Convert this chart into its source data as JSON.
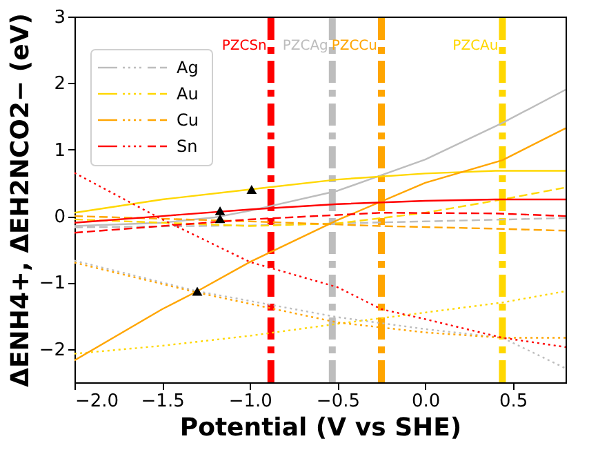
{
  "chart_data": {
    "type": "line",
    "xlabel": "Potential (V vs SHE)",
    "ylabel": "ΔENH4+, ΔEH2NCO2−  (eV)",
    "xlim": [
      -2.0,
      0.8
    ],
    "ylim": [
      -2.5,
      3
    ],
    "xticks": [
      {
        "value": -2,
        "label": "−2.0"
      },
      -1.5,
      {
        "value": -1,
        "label": "−1.0"
      },
      -0.5,
      {
        "value": 0,
        "label": "0.0"
      },
      0.5
    ],
    "yticks": [
      -2,
      -1,
      0,
      1,
      2,
      3
    ],
    "grid": false,
    "legend": "top left",
    "series": [
      {
        "color": "#bdbdbd",
        "line_style": "solid",
        "x": [
          -2.0,
          -1.5,
          -1.2,
          -1.0,
          -0.5,
          0.0,
          0.44,
          0.8
        ],
        "values": [
          -0.15,
          -0.1,
          -0.02,
          0.08,
          0.38,
          0.85,
          1.4,
          1.9
        ]
      },
      {
        "color": "#bdbdbd",
        "line_style": "dotted",
        "x": [
          -2.0,
          -1.3,
          -0.5,
          0.0,
          0.44,
          0.8
        ],
        "values": [
          -0.67,
          -1.13,
          -1.52,
          -1.7,
          -1.83,
          -2.29
        ]
      },
      {
        "name": "Ag",
        "color": "#bdbdbd",
        "line_style": "dashed",
        "x": [
          -2.0,
          -1.0,
          0.0,
          0.8
        ],
        "values": [
          -0.17,
          -0.14,
          -0.08,
          -0.03
        ]
      },
      {
        "color": "#ffd700",
        "line_style": "solid",
        "x": [
          -2.0,
          -1.5,
          -1.0,
          -0.5,
          0.0,
          0.4,
          0.8
        ],
        "values": [
          0.05,
          0.25,
          0.4,
          0.55,
          0.64,
          0.68,
          0.68
        ]
      },
      {
        "color": "#ffd700",
        "line_style": "dotted",
        "x": [
          -2.0,
          -1.5,
          -1.0,
          -0.5,
          0.0,
          0.44,
          0.8
        ],
        "values": [
          -2.07,
          -1.95,
          -1.8,
          -1.62,
          -1.45,
          -1.3,
          -1.13
        ]
      },
      {
        "name": "Au",
        "color": "#ffd700",
        "line_style": "dashed",
        "x": [
          -2.0,
          -1.0,
          -0.5,
          0.0,
          0.44,
          0.8
        ],
        "values": [
          -0.05,
          -0.15,
          -0.11,
          0.05,
          0.25,
          0.43
        ]
      },
      {
        "color": "#ffa500",
        "line_style": "solid",
        "x": [
          -2.0,
          -1.5,
          -1.3,
          -1.0,
          -0.5,
          0.0,
          0.44,
          0.8
        ],
        "values": [
          -2.17,
          -1.4,
          -1.13,
          -0.69,
          -0.06,
          0.5,
          0.84,
          1.32
        ]
      },
      {
        "color": "#ffa500",
        "line_style": "dotted",
        "x": [
          -2.0,
          -1.3,
          -0.5,
          0.0,
          0.44,
          0.8
        ],
        "values": [
          -0.7,
          -1.15,
          -1.6,
          -1.75,
          -1.83,
          -1.83
        ]
      },
      {
        "name": "Cu",
        "color": "#ffa500",
        "line_style": "dashed",
        "x": [
          -2.0,
          -1.0,
          -0.25,
          0.4,
          0.8
        ],
        "values": [
          0.0,
          -0.08,
          -0.15,
          -0.19,
          -0.22
        ]
      },
      {
        "color": "#ff0000",
        "line_style": "solid",
        "x": [
          -2.0,
          -1.5,
          -1.0,
          -0.5,
          0.0,
          0.4,
          0.8
        ],
        "values": [
          -0.1,
          0.0,
          0.1,
          0.18,
          0.23,
          0.25,
          0.25
        ]
      },
      {
        "color": "#ff0000",
        "line_style": "dotted",
        "x": [
          -2.0,
          -1.5,
          -1.0,
          -0.5,
          -0.25,
          0.0,
          0.44,
          0.8
        ],
        "values": [
          0.65,
          -0.05,
          -0.69,
          -1.07,
          -1.4,
          -1.55,
          -1.83,
          -1.97
        ]
      },
      {
        "name": "Sn",
        "color": "#ff0000",
        "line_style": "dashed",
        "x": [
          -2.0,
          -1.0,
          -0.25,
          0.4,
          0.8
        ],
        "values": [
          -0.25,
          -0.05,
          0.05,
          0.04,
          0.0
        ]
      },
      {
        "type": "scatter",
        "marker": "triangle",
        "color": "#000000",
        "x": [
          -0.99,
          -1.17,
          -1.17,
          -1.3
        ],
        "values": [
          0.4,
          0.08,
          -0.04,
          -1.13
        ]
      }
    ],
    "ref_lines": [
      {
        "axis": "x",
        "value": -0.88,
        "label": "PZCSn",
        "color": "#ff0000",
        "line_style": "dashed"
      },
      {
        "axis": "x",
        "value": -0.53,
        "label": "PZCAg",
        "color": "#bdbdbd",
        "line_style": "dashed"
      },
      {
        "axis": "x",
        "value": -0.25,
        "label": "PZCCu",
        "color": "#ffa500",
        "line_style": "dashed"
      },
      {
        "axis": "x",
        "value": 0.44,
        "label": "PZCAu",
        "color": "#ffd700",
        "line_style": "dashed"
      }
    ]
  }
}
